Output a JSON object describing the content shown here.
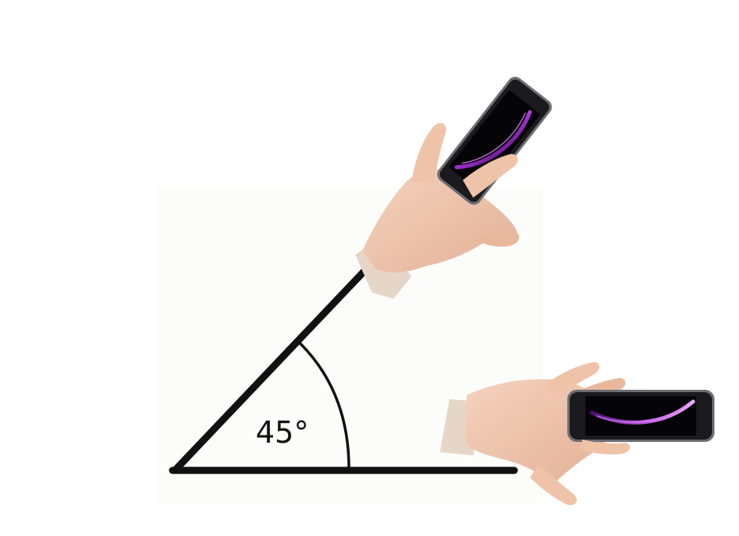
{
  "diagram": {
    "angle_label": "45°",
    "colors": {
      "line": "#111111",
      "skin": "#f2c6ac",
      "skin_shadow": "#d9a587",
      "cuff": "#e8e0d8",
      "phone_body": "#1b1b1f",
      "phone_bezel": "#6d6e73",
      "phone_screen": "#050507",
      "screen_glow": "#b03ad8"
    },
    "icons": {
      "raised_hand_phone": "hand-holding-phone-icon",
      "flat_hand_phone": "hand-holding-phone-icon"
    }
  }
}
